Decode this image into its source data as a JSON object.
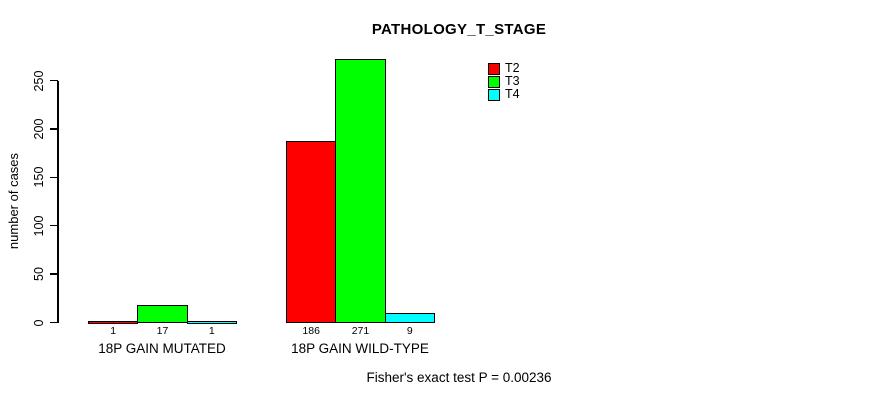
{
  "chart_data": {
    "type": "bar",
    "title": "PATHOLOGY_T_STAGE",
    "xlabel": "",
    "ylabel": "number of cases",
    "categories": [
      "18P GAIN MUTATED",
      "18P GAIN WILD-TYPE"
    ],
    "series": [
      {
        "name": "T2",
        "color": "#ff0000",
        "values": [
          1,
          186
        ]
      },
      {
        "name": "T3",
        "color": "#00ff00",
        "values": [
          17,
          271
        ]
      },
      {
        "name": "T4",
        "color": "#00ffff",
        "values": [
          1,
          9
        ]
      }
    ],
    "yticks": [
      0,
      50,
      100,
      150,
      200,
      250
    ],
    "ylim": [
      0,
      275
    ],
    "grid": false,
    "legend_position": "top-right-inside",
    "bar_value_labels_shown": true,
    "annotation": "Fisher's exact test P = 0.00236"
  },
  "colors": {
    "background": "#ffffff",
    "axis": "#000000",
    "text": "#000000"
  }
}
